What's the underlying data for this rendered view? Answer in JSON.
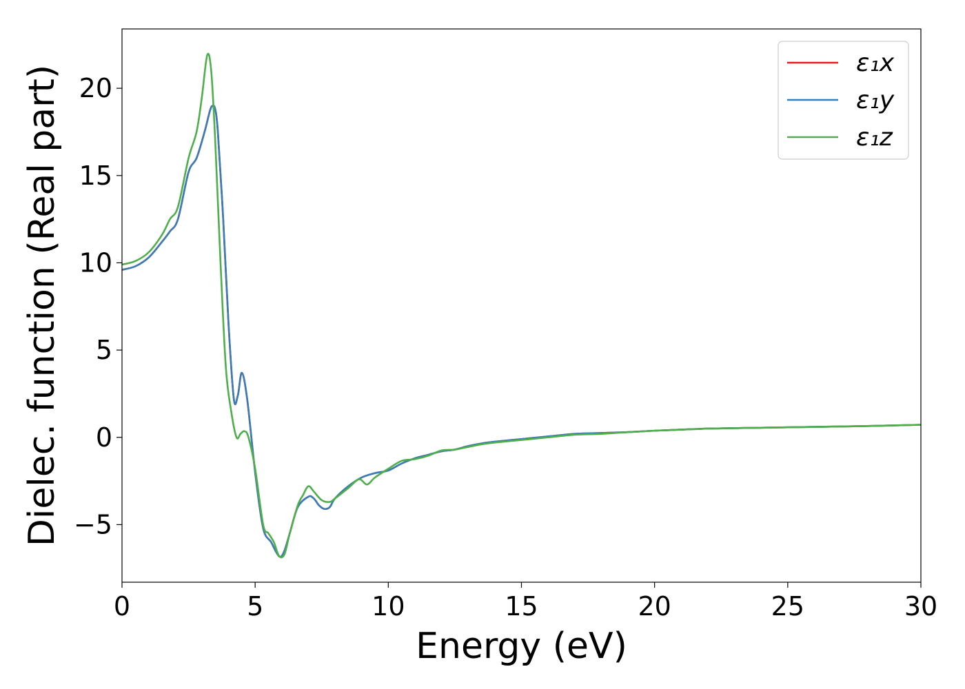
{
  "chart_data": {
    "type": "line",
    "xlabel": "Energy (eV)",
    "ylabel": "Dielec. function (Real part)",
    "xlim": [
      0,
      30
    ],
    "ylim": [
      -8.3,
      23.4
    ],
    "xticks": [
      0,
      5,
      10,
      15,
      20,
      25,
      30
    ],
    "yticks": [
      -5,
      0,
      5,
      10,
      15,
      20
    ],
    "xtick_labels": [
      "0",
      "5",
      "10",
      "15",
      "20",
      "25",
      "30"
    ],
    "ytick_labels": [
      "−5",
      "0",
      "5",
      "10",
      "15",
      "20"
    ],
    "grid": false,
    "legend_position": "top-right",
    "series": [
      {
        "name": "ε₁x",
        "color": "#e41a1c",
        "x": [
          0,
          0.5,
          1.0,
          1.5,
          1.8,
          2.1,
          2.5,
          2.8,
          3.1,
          3.3,
          3.4,
          3.5,
          3.6,
          3.8,
          4.0,
          4.2,
          4.35,
          4.5,
          4.7,
          5.0,
          5.3,
          5.6,
          5.8,
          5.95,
          6.1,
          6.3,
          6.6,
          7.0,
          7.2,
          7.4,
          7.6,
          7.8,
          8.0,
          8.5,
          9.0,
          9.5,
          10.0,
          10.5,
          11.0,
          11.5,
          12.0,
          12.5,
          13.0,
          13.5,
          14.0,
          15.0,
          16.0,
          17.0,
          18.0,
          19.0,
          20.0,
          22.0,
          24.0,
          26.0,
          28.0,
          30.0
        ],
        "y": [
          9.6,
          9.8,
          10.3,
          11.2,
          11.8,
          12.5,
          15.2,
          16.0,
          17.5,
          18.7,
          19.0,
          18.8,
          17.5,
          12.5,
          6.5,
          2.2,
          2.4,
          3.7,
          2.2,
          -2.0,
          -5.2,
          -6.0,
          -6.6,
          -6.85,
          -6.5,
          -5.5,
          -4.0,
          -3.4,
          -3.5,
          -3.9,
          -4.1,
          -4.0,
          -3.5,
          -2.8,
          -2.3,
          -2.05,
          -1.9,
          -1.5,
          -1.2,
          -1.0,
          -0.8,
          -0.7,
          -0.5,
          -0.35,
          -0.25,
          -0.1,
          0.05,
          0.2,
          0.25,
          0.3,
          0.38,
          0.5,
          0.55,
          0.6,
          0.65,
          0.72
        ]
      },
      {
        "name": "ε₁y",
        "color": "#377eb8",
        "x": [
          0,
          0.5,
          1.0,
          1.5,
          1.8,
          2.1,
          2.5,
          2.8,
          3.1,
          3.3,
          3.4,
          3.5,
          3.6,
          3.8,
          4.0,
          4.2,
          4.35,
          4.5,
          4.7,
          5.0,
          5.3,
          5.6,
          5.8,
          5.95,
          6.1,
          6.3,
          6.6,
          7.0,
          7.2,
          7.4,
          7.6,
          7.8,
          8.0,
          8.5,
          9.0,
          9.5,
          10.0,
          10.5,
          11.0,
          11.5,
          12.0,
          12.5,
          13.0,
          13.5,
          14.0,
          15.0,
          16.0,
          17.0,
          18.0,
          19.0,
          20.0,
          22.0,
          24.0,
          26.0,
          28.0,
          30.0
        ],
        "y": [
          9.6,
          9.8,
          10.3,
          11.2,
          11.8,
          12.5,
          15.2,
          16.0,
          17.5,
          18.7,
          19.0,
          18.8,
          17.5,
          12.5,
          6.5,
          2.2,
          2.4,
          3.7,
          2.2,
          -2.0,
          -5.2,
          -6.0,
          -6.6,
          -6.85,
          -6.5,
          -5.5,
          -4.0,
          -3.4,
          -3.5,
          -3.9,
          -4.1,
          -4.0,
          -3.5,
          -2.8,
          -2.3,
          -2.05,
          -1.9,
          -1.5,
          -1.2,
          -1.0,
          -0.8,
          -0.7,
          -0.5,
          -0.35,
          -0.25,
          -0.1,
          0.05,
          0.2,
          0.25,
          0.3,
          0.38,
          0.5,
          0.55,
          0.6,
          0.65,
          0.72
        ]
      },
      {
        "name": "ε₁z",
        "color": "#4daf4a",
        "x": [
          0,
          0.5,
          1.0,
          1.5,
          1.8,
          2.1,
          2.5,
          2.8,
          3.0,
          3.2,
          3.35,
          3.5,
          3.7,
          3.9,
          4.1,
          4.3,
          4.45,
          4.6,
          4.75,
          5.0,
          5.3,
          5.5,
          5.7,
          5.9,
          6.1,
          6.3,
          6.6,
          6.8,
          7.0,
          7.2,
          7.5,
          7.8,
          8.0,
          8.5,
          8.9,
          9.2,
          9.5,
          10.0,
          10.5,
          11.0,
          11.5,
          12.0,
          12.5,
          13.0,
          13.5,
          14.0,
          15.0,
          16.0,
          17.0,
          18.0,
          19.0,
          20.0,
          22.0,
          24.0,
          26.0,
          28.0,
          30.0
        ],
        "y": [
          9.9,
          10.1,
          10.6,
          11.6,
          12.5,
          13.2,
          16.0,
          17.5,
          19.5,
          21.9,
          21.0,
          17.0,
          10.0,
          4.0,
          1.5,
          0.0,
          0.2,
          0.35,
          0.0,
          -1.8,
          -5.0,
          -5.5,
          -6.0,
          -6.8,
          -6.7,
          -5.5,
          -3.9,
          -3.3,
          -2.8,
          -3.1,
          -3.6,
          -3.7,
          -3.5,
          -2.9,
          -2.4,
          -2.7,
          -2.3,
          -1.8,
          -1.35,
          -1.25,
          -1.05,
          -0.75,
          -0.7,
          -0.55,
          -0.4,
          -0.3,
          -0.15,
          0.0,
          0.15,
          0.2,
          0.3,
          0.38,
          0.5,
          0.55,
          0.6,
          0.65,
          0.72
        ]
      }
    ]
  }
}
